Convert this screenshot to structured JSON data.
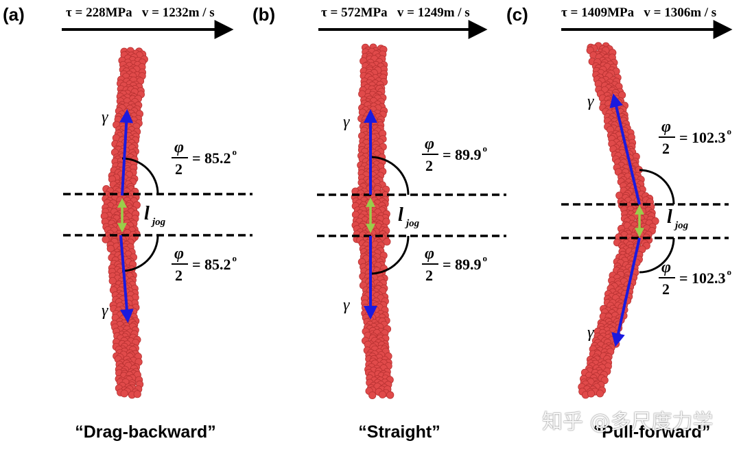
{
  "panels": [
    {
      "letter": "(a)",
      "stress": "τ = 228MPa",
      "velocity": "v = 1232m / s",
      "angle_top": "= 85.2",
      "angle_bottom": "= 85.2",
      "caption": "“Drag-backward”"
    },
    {
      "letter": "(b)",
      "stress": "τ = 572MPa",
      "velocity": "v = 1249m / s",
      "angle_top": "= 89.9",
      "angle_bottom": "= 89.9",
      "caption": "“Straight”"
    },
    {
      "letter": "(c)",
      "stress": "τ = 1409MPa",
      "velocity": "v = 1306m / s",
      "angle_top": "= 102.3",
      "angle_bottom": "= 102.3",
      "caption": "“Pull-forward”"
    }
  ],
  "labels": {
    "gamma": "γ",
    "phi": "φ",
    "two": "2",
    "degree": "o",
    "l": "l",
    "jog": "jog"
  },
  "watermark": "知乎 @多尺度力学",
  "colors": {
    "atoms": "#e04a4a",
    "atom_edge": "#b83232",
    "burgers_arrow": "#1a1adf",
    "jog_arrow": "#9acd4a",
    "ink": "#000000"
  }
}
